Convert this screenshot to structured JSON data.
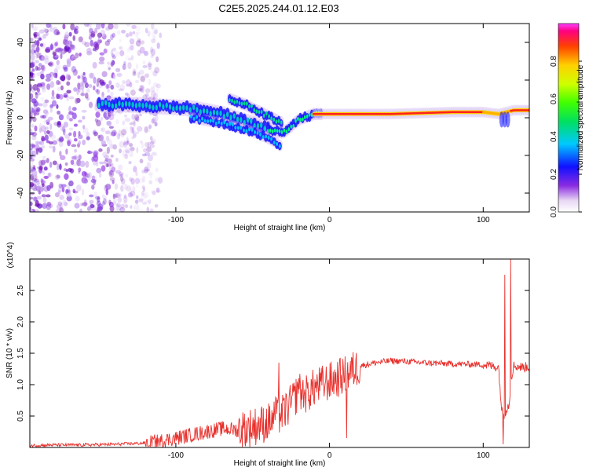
{
  "page_title": "C2E5.2025.244.01.12.E03",
  "chart_data": [
    {
      "type": "heatmap",
      "title": "C2E5.2025.244.01.12.E03",
      "xlabel": "Height of straight line (km)",
      "ylabel": "Frequency (Hz)",
      "xlim": [
        -195,
        130
      ],
      "ylim": [
        -50,
        50
      ],
      "xticks": [
        -100,
        0,
        100
      ],
      "xtick_labels": [
        "-100",
        "0",
        "100"
      ],
      "yticks": [
        -40,
        -20,
        0,
        20,
        40
      ],
      "ytick_labels": [
        "-40",
        "-20",
        "0",
        "20",
        "40"
      ],
      "colorbar": {
        "label": "Normalized spectral amplitude",
        "range": [
          0,
          1
        ],
        "ticks": [
          0.0,
          0.2,
          0.4,
          0.6,
          0.8
        ],
        "tick_labels": [
          "0.0",
          "0.2",
          "0.4",
          "0.6",
          "0.8"
        ]
      },
      "features": {
        "noise_region_x": [
          -195,
          -120
        ],
        "main_branch": {
          "x": [
            -150,
            -130,
            -110,
            -90,
            -70,
            -50,
            -40,
            -30,
            -20,
            -10,
            0,
            40,
            80,
            100,
            110,
            120,
            130
          ],
          "y": [
            7,
            7,
            6,
            5,
            2,
            -3,
            -6,
            -8,
            -1,
            2,
            2,
            2,
            3,
            3,
            2,
            4,
            4
          ]
        },
        "upper_branch": {
          "x": [
            -65,
            -55,
            -45,
            -35,
            -30
          ],
          "y": [
            10,
            7,
            3,
            -1,
            -3
          ]
        },
        "lower_branch": {
          "x": [
            -90,
            -70,
            -55,
            -45,
            -35,
            -32
          ],
          "y": [
            0,
            -3,
            -6,
            -9,
            -13,
            -15
          ]
        }
      }
    },
    {
      "type": "line",
      "xlabel": "Height of straight line (km)",
      "ylabel": "SNR (10 * v/v)",
      "y_scale_label": "(x10^4)",
      "xlim": [
        -195,
        130
      ],
      "ylim": [
        0,
        3.0
      ],
      "xticks": [
        -100,
        0,
        100
      ],
      "xtick_labels": [
        "-100",
        "0",
        "100"
      ],
      "yticks": [
        0.5,
        1.0,
        1.5,
        2.0,
        2.5
      ],
      "ytick_labels": [
        "0.5",
        "1.0",
        "1.5",
        "2.0",
        "2.5"
      ],
      "color": "#e8302c",
      "series": [
        {
          "name": "SNR",
          "x": [
            -195,
            -180,
            -160,
            -140,
            -130,
            -120,
            -110,
            -100,
            -90,
            -80,
            -70,
            -60,
            -50,
            -40,
            -30,
            -25,
            -20,
            -15,
            -10,
            -5,
            0,
            5,
            10,
            20,
            30,
            40,
            50,
            60,
            80,
            100,
            105,
            110,
            112,
            113,
            115,
            117,
            118,
            120,
            125,
            130
          ],
          "y": [
            0.03,
            0.04,
            0.04,
            0.05,
            0.06,
            0.07,
            0.1,
            0.15,
            0.2,
            0.25,
            0.3,
            0.28,
            0.33,
            0.4,
            0.55,
            0.7,
            0.9,
            0.85,
            0.95,
            1.0,
            1.05,
            1.1,
            1.15,
            1.3,
            1.35,
            1.38,
            1.37,
            1.35,
            1.33,
            1.32,
            1.3,
            1.28,
            0.6,
            0.5,
            0.6,
            0.7,
            1.1,
            1.3,
            1.28,
            1.28
          ]
        }
      ],
      "spikes": [
        {
          "x": 114,
          "y": 2.75
        },
        {
          "x": 113,
          "y": 0.05
        },
        {
          "x": 118,
          "y": 3.0
        },
        {
          "x": 10,
          "y": 1.45
        },
        {
          "x": 11,
          "y": 0.15
        },
        {
          "x": -33,
          "y": 1.35
        },
        {
          "x": -20,
          "y": 1.1
        },
        {
          "x": -35,
          "y": 0.8
        }
      ]
    }
  ]
}
